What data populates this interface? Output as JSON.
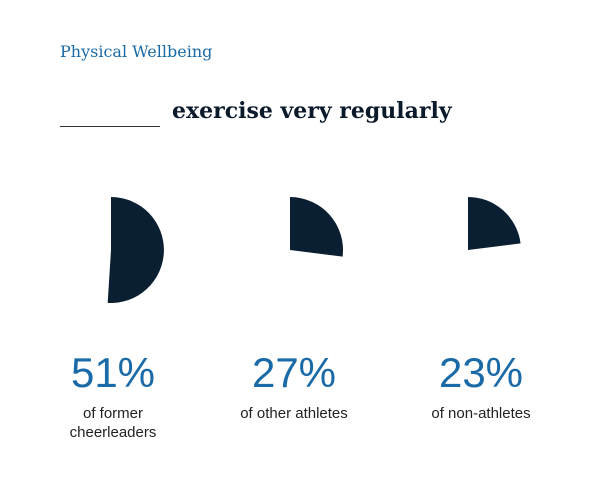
{
  "header": {
    "section_label": "Physical Wellbeing",
    "headline": "exercise very regularly"
  },
  "colors": {
    "accent": "#1a6aa8",
    "slice": "#0b1f33"
  },
  "chart_data": {
    "type": "pie",
    "title": "exercise very regularly",
    "unit": "%",
    "groups": [
      {
        "label": "of former cheerleaders",
        "value": 51,
        "display": "51%"
      },
      {
        "label": "of other athletes",
        "value": 27,
        "display": "27%"
      },
      {
        "label": "of non-athletes",
        "value": 23,
        "display": "23%"
      }
    ]
  }
}
